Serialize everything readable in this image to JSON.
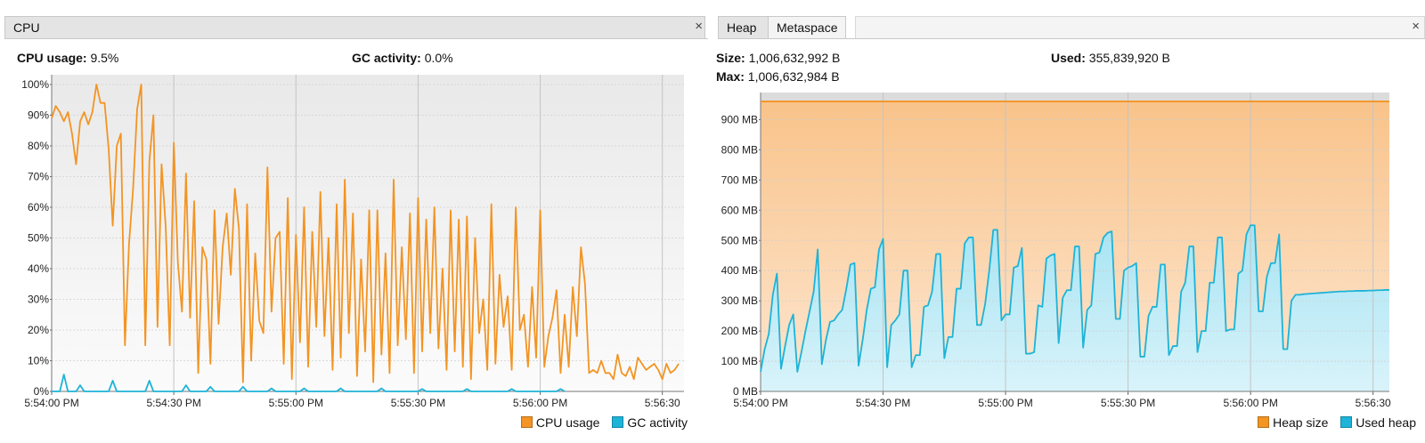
{
  "cpu": {
    "tab_label": "CPU",
    "close_glyph": "×",
    "usage_label": "CPU usage:",
    "usage_value": "9.5%",
    "gc_label": "GC activity:",
    "gc_value": "0.0%",
    "legend": [
      {
        "label": "CPU usage",
        "color": "#f39423"
      },
      {
        "label": "GC activity",
        "color": "#1eb3d8"
      }
    ]
  },
  "heap": {
    "tabs": [
      "Heap",
      "Metaspace"
    ],
    "close_glyph": "×",
    "size_label": "Size:",
    "size_value": "1,006,632,992 B",
    "used_label": "Used:",
    "used_value": "355,839,920 B",
    "max_label": "Max:",
    "max_value": "1,006,632,984 B",
    "legend": [
      {
        "label": "Heap size",
        "color": "#f39423"
      },
      {
        "label": "Used heap",
        "color": "#1eb3d8"
      }
    ]
  },
  "chart_data": [
    {
      "type": "line",
      "x_unit": "seconds after 5:54:00 PM",
      "xlim": [
        0,
        154
      ],
      "ylim": [
        0,
        100
      ],
      "yticks": [
        "0%",
        "10%",
        "20%",
        "30%",
        "40%",
        "50%",
        "60%",
        "70%",
        "80%",
        "90%",
        "100%"
      ],
      "xticks": [
        {
          "v": 0,
          "label": "5:54:00 PM"
        },
        {
          "v": 30,
          "label": "5:54:30 PM"
        },
        {
          "v": 60,
          "label": "5:55:00 PM"
        },
        {
          "v": 90,
          "label": "5:55:30 PM"
        },
        {
          "v": 120,
          "label": "5:56:00 PM"
        },
        {
          "v": 150,
          "label": "5:56:30"
        }
      ],
      "grid": true,
      "legend_position": "bottom-right",
      "series": [
        {
          "name": "CPU usage",
          "color": "#f39423",
          "x": [
            0,
            1,
            2,
            3,
            4,
            5,
            6,
            7,
            8,
            9,
            10,
            11,
            12,
            13,
            14,
            15,
            16,
            17,
            18,
            19,
            20,
            21,
            22,
            23,
            24,
            25,
            26,
            27,
            28,
            29,
            30,
            31,
            32,
            33,
            34,
            35,
            36,
            37,
            38,
            39,
            40,
            41,
            42,
            43,
            44,
            45,
            46,
            47,
            48,
            49,
            50,
            51,
            52,
            53,
            54,
            55,
            56,
            57,
            58,
            59,
            60,
            61,
            62,
            63,
            64,
            65,
            66,
            67,
            68,
            69,
            70,
            71,
            72,
            73,
            74,
            75,
            76,
            77,
            78,
            79,
            80,
            81,
            82,
            83,
            84,
            85,
            86,
            87,
            88,
            89,
            90,
            91,
            92,
            93,
            94,
            95,
            96,
            97,
            98,
            99,
            100,
            101,
            102,
            103,
            104,
            105,
            106,
            107,
            108,
            109,
            110,
            111,
            112,
            113,
            114,
            115,
            116,
            117,
            118,
            119,
            120,
            121,
            122,
            123,
            124,
            125,
            126,
            127,
            128,
            129,
            130,
            131,
            132,
            133,
            134,
            135,
            136,
            137,
            138,
            139,
            140,
            141,
            142,
            143,
            144,
            145,
            146,
            147,
            148,
            149,
            150,
            151,
            152,
            153,
            154
          ],
          "values": [
            89,
            93,
            91,
            88,
            91,
            84,
            74,
            88,
            91,
            87,
            91,
            100,
            94,
            94,
            79,
            54,
            80,
            84,
            15,
            48,
            66,
            92,
            100,
            15,
            75,
            90,
            21,
            74,
            54,
            15,
            81,
            42,
            26,
            71,
            24,
            62,
            6,
            47,
            43,
            9,
            59,
            22,
            47,
            58,
            38,
            66,
            53,
            3,
            61,
            10,
            45,
            23,
            19,
            73,
            26,
            50,
            52,
            9,
            63,
            4,
            51,
            16,
            60,
            8,
            52,
            21,
            65,
            18,
            50,
            7,
            61,
            11,
            69,
            19,
            58,
            5,
            43,
            13,
            59,
            3,
            59,
            12,
            45,
            6,
            69,
            15,
            47,
            17,
            58,
            6,
            63,
            13,
            56,
            19,
            60,
            14,
            40,
            7,
            59,
            13,
            56,
            8,
            57,
            4,
            50,
            19,
            30,
            7,
            61,
            9,
            38,
            21,
            31,
            7,
            60,
            20,
            25,
            8,
            34,
            11,
            59,
            8,
            18,
            24,
            33,
            6,
            25,
            8,
            34,
            18,
            47,
            35,
            6,
            7,
            6,
            10,
            6,
            6,
            4,
            12,
            6,
            5,
            8,
            4,
            11,
            9,
            7,
            8,
            9,
            7,
            4,
            9,
            6,
            7,
            9
          ]
        },
        {
          "name": "GC activity",
          "color": "#1eb3d8",
          "x": [
            0,
            2,
            3,
            4,
            6,
            7,
            8,
            14,
            15,
            16,
            23,
            24,
            25,
            32,
            33,
            34,
            38,
            39,
            40,
            46,
            47,
            48,
            53,
            54,
            55,
            61,
            62,
            63,
            70,
            71,
            72,
            80,
            81,
            82,
            90,
            91,
            92,
            101,
            102,
            103,
            112,
            113,
            114,
            124,
            125,
            126
          ],
          "values": [
            0,
            0,
            5.5,
            0,
            0,
            2,
            0,
            0,
            3.5,
            0,
            0,
            3.5,
            0,
            0,
            2,
            0,
            0,
            1.5,
            0,
            0,
            1.5,
            0,
            0,
            1,
            0,
            0,
            1,
            0,
            0,
            1,
            0,
            0,
            1,
            0,
            0,
            0.8,
            0,
            0,
            0.8,
            0,
            0,
            0.8,
            0,
            0,
            0.8,
            0
          ]
        }
      ]
    },
    {
      "type": "area",
      "x_unit": "seconds after 5:54:00 PM",
      "xlim": [
        0,
        154
      ],
      "ylim": [
        0,
        1000
      ],
      "y_unit": "MB",
      "yticks": [
        "0 MB",
        "100 MB",
        "200 MB",
        "300 MB",
        "400 MB",
        "500 MB",
        "600 MB",
        "700 MB",
        "800 MB",
        "900 MB"
      ],
      "xticks": [
        {
          "v": 0,
          "label": "5:54:00 PM"
        },
        {
          "v": 30,
          "label": "5:54:30 PM"
        },
        {
          "v": 60,
          "label": "5:55:00 PM"
        },
        {
          "v": 90,
          "label": "5:55:30 PM"
        },
        {
          "v": 120,
          "label": "5:56:00 PM"
        },
        {
          "v": 150,
          "label": "5:56:30"
        }
      ],
      "grid": true,
      "legend_position": "bottom-right",
      "series": [
        {
          "name": "Heap size",
          "color": "#f39423",
          "x": [
            0,
            154
          ],
          "values": [
            960,
            960
          ]
        },
        {
          "name": "Used heap",
          "color": "#1eb3d8",
          "x": [
            0,
            1,
            2,
            3,
            4,
            5,
            6,
            7,
            8,
            9,
            10,
            11,
            12,
            13,
            14,
            15,
            16,
            17,
            18,
            19,
            20,
            21,
            22,
            23,
            24,
            25,
            26,
            27,
            28,
            29,
            30,
            31,
            32,
            33,
            34,
            35,
            36,
            37,
            38,
            39,
            40,
            41,
            42,
            43,
            44,
            45,
            46,
            47,
            48,
            49,
            50,
            51,
            52,
            53,
            54,
            55,
            56,
            57,
            58,
            59,
            60,
            61,
            62,
            63,
            64,
            65,
            66,
            67,
            68,
            69,
            70,
            71,
            72,
            73,
            74,
            75,
            76,
            77,
            78,
            79,
            80,
            81,
            82,
            83,
            84,
            85,
            86,
            87,
            88,
            89,
            90,
            91,
            92,
            93,
            94,
            95,
            96,
            97,
            98,
            99,
            100,
            101,
            102,
            103,
            104,
            105,
            106,
            107,
            108,
            109,
            110,
            111,
            112,
            113,
            114,
            115,
            116,
            117,
            118,
            119,
            120,
            121,
            122,
            123,
            124,
            125,
            126,
            127,
            128,
            129,
            130,
            131,
            132,
            133,
            134,
            135,
            136,
            137,
            138,
            139,
            140,
            141,
            142,
            143,
            144,
            145,
            146,
            147,
            148,
            149,
            150,
            151,
            152,
            153,
            154
          ],
          "values": [
            65,
            140,
            190,
            320,
            390,
            75,
            150,
            220,
            255,
            65,
            130,
            200,
            265,
            330,
            470,
            90,
            170,
            230,
            235,
            255,
            270,
            340,
            420,
            425,
            85,
            170,
            270,
            340,
            345,
            470,
            505,
            80,
            220,
            235,
            255,
            400,
            400,
            80,
            120,
            120,
            280,
            285,
            330,
            455,
            455,
            110,
            180,
            180,
            340,
            340,
            490,
            510,
            510,
            220,
            220,
            290,
            400,
            535,
            535,
            235,
            255,
            255,
            410,
            415,
            475,
            125,
            125,
            130,
            285,
            280,
            440,
            450,
            455,
            160,
            310,
            335,
            335,
            480,
            480,
            145,
            270,
            285,
            455,
            460,
            510,
            525,
            530,
            240,
            240,
            400,
            410,
            415,
            425,
            115,
            115,
            250,
            280,
            280,
            420,
            420,
            120,
            150,
            150,
            330,
            360,
            480,
            480,
            130,
            200,
            200,
            360,
            360,
            510,
            510,
            200,
            205,
            205,
            390,
            400,
            520,
            550,
            550,
            265,
            265,
            380,
            425,
            425,
            520,
            140,
            140,
            300,
            320,
            320,
            322,
            323,
            324,
            325,
            326,
            327,
            328,
            329,
            330,
            331,
            331,
            332,
            332,
            333,
            333,
            333,
            334,
            334,
            335,
            335,
            336,
            336
          ]
        }
      ]
    }
  ]
}
